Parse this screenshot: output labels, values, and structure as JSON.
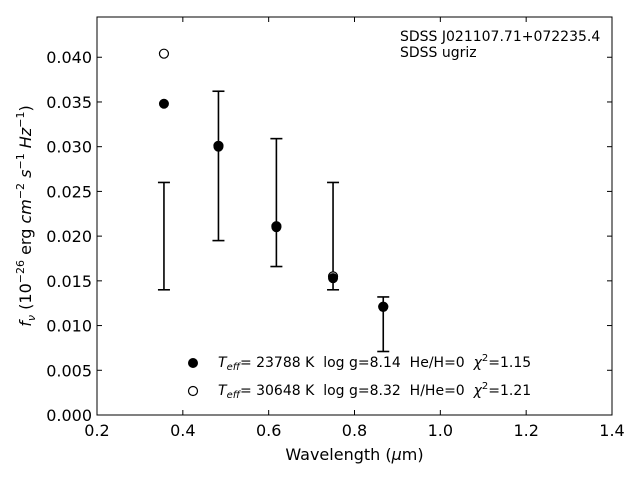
{
  "chart_data": {
    "type": "scatter",
    "xlabel": "Wavelength (μm)",
    "ylabel": "f_ν (10^-26 erg cm^-2 s^-1 Hz^-1)",
    "xlim": [
      0.2,
      1.4
    ],
    "ylim": [
      0.0,
      0.0445
    ],
    "xticks": [
      "0.2",
      "0.4",
      "0.6",
      "0.8",
      "1.0",
      "1.2",
      "1.4"
    ],
    "yticks": [
      "0.000",
      "0.005",
      "0.010",
      "0.015",
      "0.020",
      "0.025",
      "0.030",
      "0.035",
      "0.040"
    ],
    "annotations": [
      "SDSS J021107.71+072235.4",
      "SDSS ugriz"
    ],
    "grid": false,
    "legend_position": "bottom-center",
    "observed": {
      "name": "SDSS ugriz",
      "x": [
        0.356,
        0.483,
        0.618,
        0.75,
        0.867
      ],
      "y_low": [
        0.014,
        0.0195,
        0.0166,
        0.014,
        0.0071
      ],
      "y_high": [
        0.026,
        0.0362,
        0.0309,
        0.026,
        0.0132
      ]
    },
    "series": [
      {
        "name": "T_eff= 23788 K  log g=8.14  He/H=0  χ²=1.15",
        "marker": "filled-circle",
        "x": [
          0.356,
          0.483,
          0.618,
          0.75,
          0.867
        ],
        "y": [
          0.0348,
          0.03,
          0.021,
          0.0153,
          0.0121
        ]
      },
      {
        "name": "T_eff= 30648 K  log g=8.32  H/He=0  χ²=1.21",
        "marker": "open-circle",
        "x": [
          0.356,
          0.483,
          0.618,
          0.75,
          0.867
        ],
        "y": [
          0.0404,
          0.0301,
          0.0211,
          0.0155,
          0.0121
        ]
      }
    ],
    "legend": [
      {
        "marker": "filled-circle",
        "teff_value": "= 23788 K",
        "params": "  log g=8.14  He/H=0  ",
        "chi_value": "=1.15"
      },
      {
        "marker": "open-circle",
        "teff_value": "= 30648 K",
        "params": "  log g=8.32  H/He=0  ",
        "chi_value": "=1.21"
      }
    ]
  }
}
